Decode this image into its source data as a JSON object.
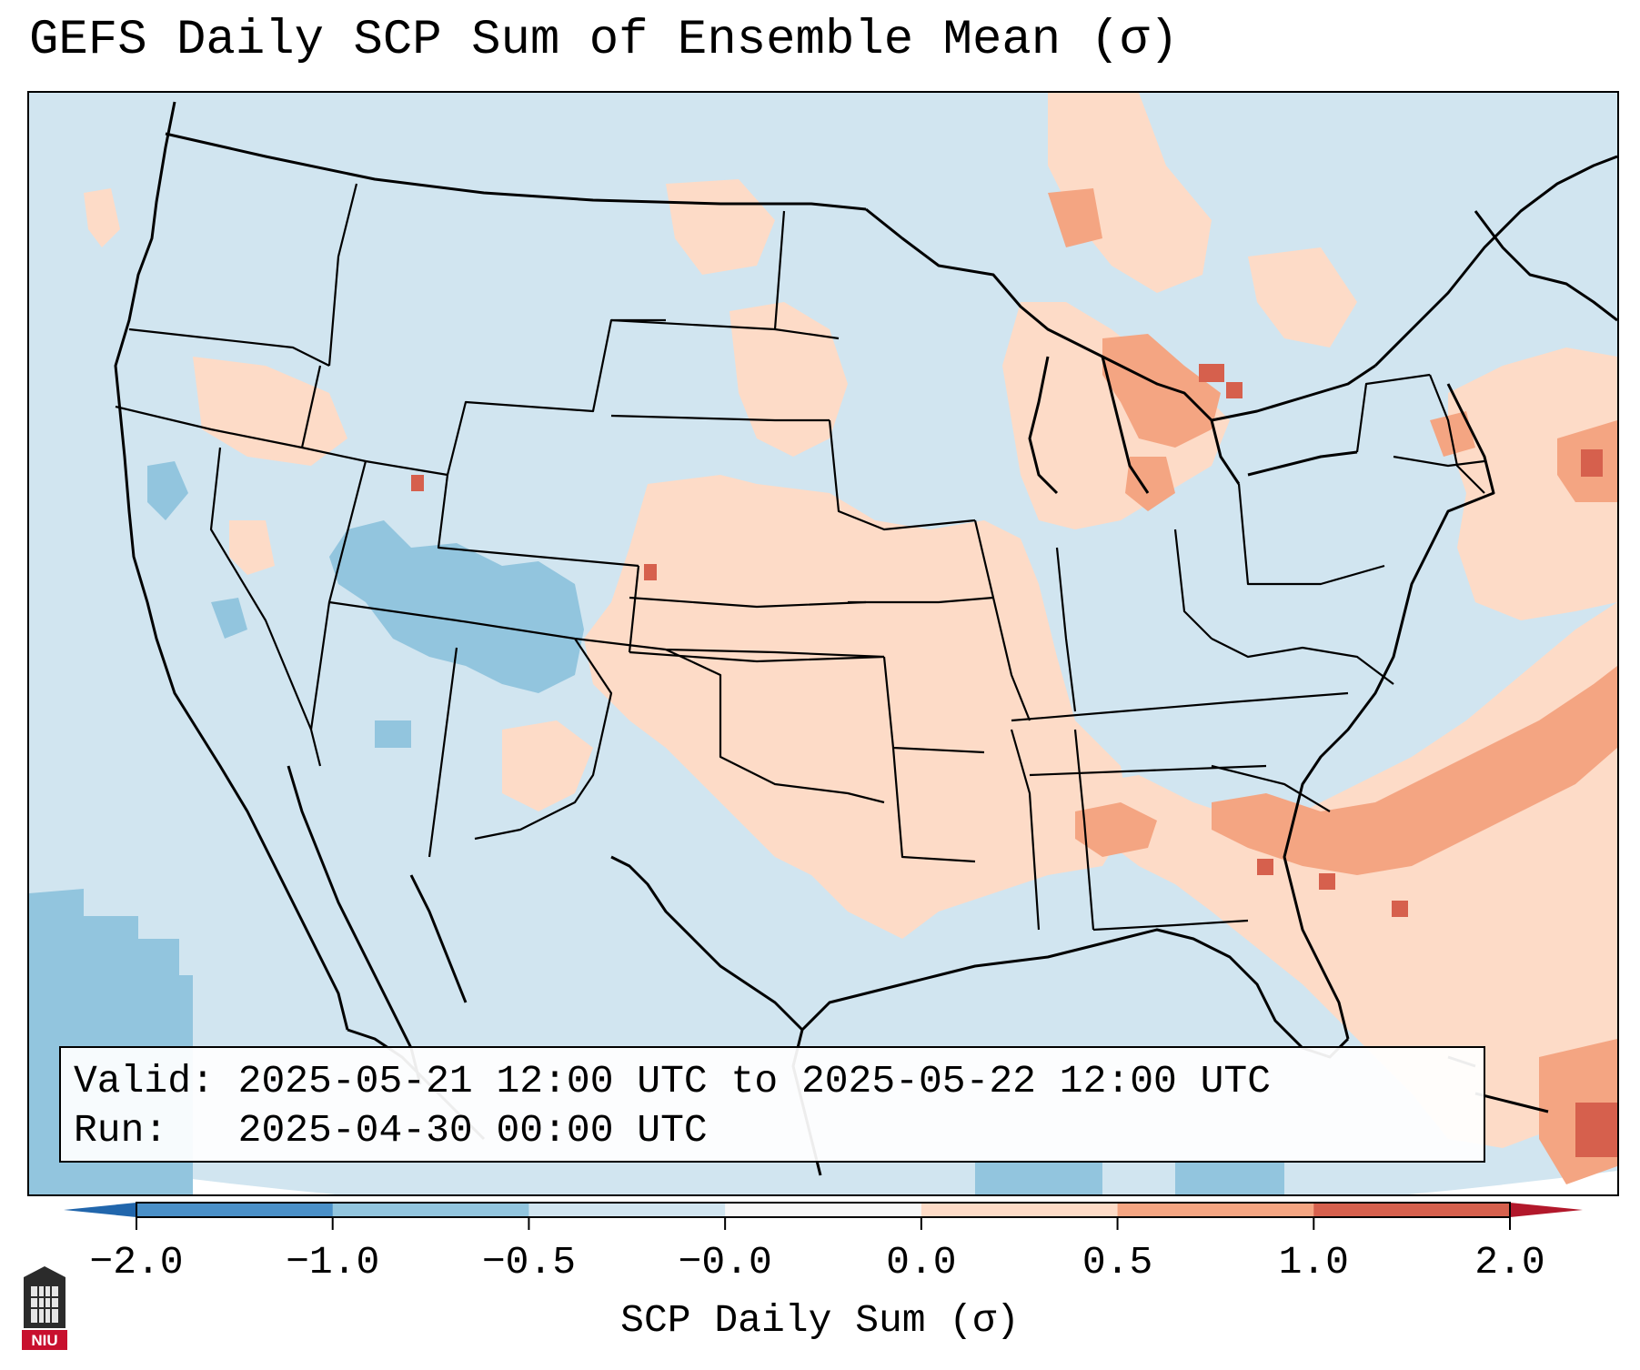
{
  "title": "GEFS Daily SCP Sum of Ensemble Mean (σ)",
  "info_box": {
    "valid_label": "Valid:",
    "valid_value": "2025-05-21 12:00 UTC to 2025-05-22 12:00 UTC",
    "run_label": "Run:",
    "run_value": "2025-04-30 00:00 UTC"
  },
  "colorbar": {
    "label": "SCP Daily Sum (σ)",
    "ticks": [
      "−2.0",
      "−1.0",
      "−0.5",
      "−0.0",
      "0.0",
      "0.5",
      "1.0",
      "2.0"
    ],
    "bins": [
      {
        "from": -2.0,
        "to": -1.0,
        "color": "#4a90c8"
      },
      {
        "from": -1.0,
        "to": -0.5,
        "color": "#92c5de"
      },
      {
        "from": -0.5,
        "to": -0.0,
        "color": "#d1e5f0"
      },
      {
        "from": -0.0,
        "to": 0.0,
        "color": "#f7f7f7"
      },
      {
        "from": 0.0,
        "to": 0.5,
        "color": "#fddbc7"
      },
      {
        "from": 0.5,
        "to": 1.0,
        "color": "#f4a582"
      },
      {
        "from": 1.0,
        "to": 2.0,
        "color": "#d6604d"
      }
    ],
    "extend_low_color": "#2166ac",
    "extend_high_color": "#b2182b"
  },
  "map": {
    "projection": "lambert-conformal",
    "region": "CONUS",
    "background_color": "#d1e5f0",
    "boundary_color": "#000000"
  },
  "logo": {
    "text": "NIU",
    "color": "#c8102e"
  }
}
